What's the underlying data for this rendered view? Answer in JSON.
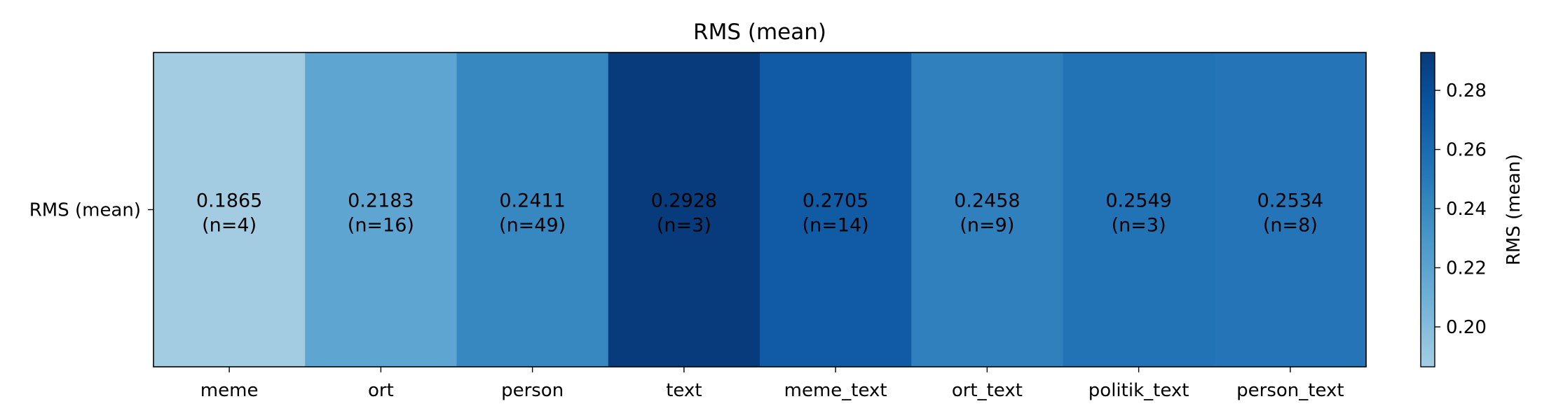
{
  "chart_data": {
    "type": "heatmap",
    "title": "RMS (mean)",
    "row_labels": [
      "RMS (mean)"
    ],
    "categories": [
      "meme",
      "ort",
      "person",
      "text",
      "meme_text",
      "ort_text",
      "politik_text",
      "person_text"
    ],
    "values": [
      0.1865,
      0.2183,
      0.2411,
      0.2928,
      0.2705,
      0.2458,
      0.2549,
      0.2534
    ],
    "cell_labels": [
      "0.1865",
      "0.2183",
      "0.2411",
      "0.2928",
      "0.2705",
      "0.2458",
      "0.2549",
      "0.2534"
    ],
    "counts": [
      "(n=4)",
      "(n=16)",
      "(n=49)",
      "(n=3)",
      "(n=14)",
      "(n=9)",
      "(n=3)",
      "(n=8)"
    ],
    "colorbar": {
      "label": "RMS (mean)",
      "range": [
        0.1865,
        0.2928
      ],
      "ticks": [
        0.2,
        0.22,
        0.24,
        0.26,
        0.28
      ],
      "tick_labels": [
        "0.20",
        "0.22",
        "0.24",
        "0.26",
        "0.28"
      ],
      "colormap": "Blues",
      "color_low": "#a9cce3",
      "color_high": "#0a3d7e"
    },
    "legend": "colorbar-right",
    "grid": false
  }
}
